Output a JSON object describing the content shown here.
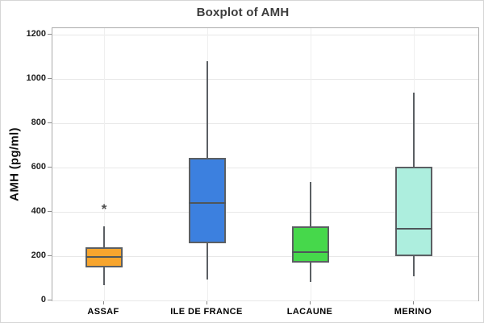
{
  "chart_data": {
    "type": "box",
    "title": "Boxplot of AMH",
    "xlabel": "",
    "ylabel": "AMH (pg/ml)",
    "ylim": [
      0,
      1200
    ],
    "yticks": [
      0,
      200,
      400,
      600,
      800,
      1000,
      1200
    ],
    "grid": true,
    "legend": false,
    "categories": [
      "ASSAF",
      "ILE DE FRANCE",
      "LACAUNE",
      "MERINO"
    ],
    "series": [
      {
        "name": "ASSAF",
        "whisker_low": 70,
        "q1": 150,
        "median": 195,
        "q3": 240,
        "whisker_high": 335,
        "outliers": [
          410
        ],
        "fill": "#F7A52E"
      },
      {
        "name": "ILE DE FRANCE",
        "whisker_low": 95,
        "q1": 260,
        "median": 440,
        "q3": 645,
        "whisker_high": 1080,
        "outliers": [],
        "fill": "#3C80DF"
      },
      {
        "name": "LACAUNE",
        "whisker_low": 85,
        "q1": 170,
        "median": 220,
        "q3": 335,
        "whisker_high": 535,
        "outliers": [],
        "fill": "#46D84B"
      },
      {
        "name": "MERINO",
        "whisker_low": 110,
        "q1": 200,
        "median": 325,
        "q3": 605,
        "whisker_high": 940,
        "outliers": [],
        "fill": "#ADEEDE"
      }
    ],
    "outlier_marker": "*",
    "styles": {
      "box_border": "#5B5F63",
      "whisker": "#5B5F63",
      "median": "#4F565A",
      "grid_h": "#E8E8E8",
      "grid_v": "#EFEFEF",
      "panel_border": "#ABABAB",
      "outlier_color": "#4F4F4F",
      "title_color": "#3C3C3C"
    }
  }
}
